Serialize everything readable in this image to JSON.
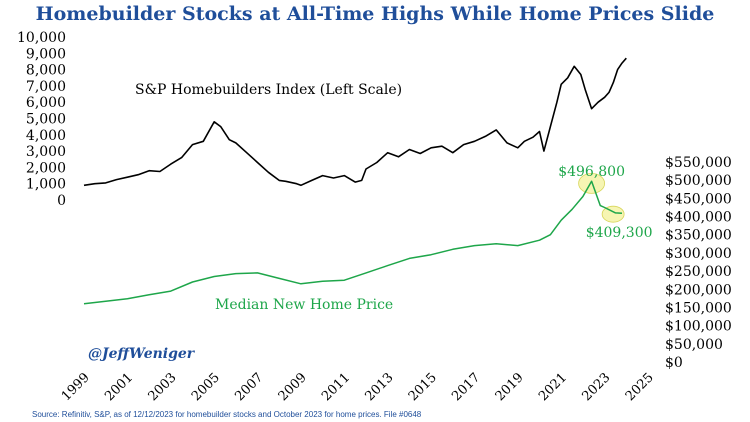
{
  "chart_data": {
    "type": "line",
    "title": "Homebuilder Stocks at All-Time Highs While Home Prices Slide",
    "x_ticks": [
      "1999",
      "2001",
      "2003",
      "2005",
      "2007",
      "2009",
      "2011",
      "2013",
      "2015",
      "2017",
      "2019",
      "2021",
      "2023",
      "2025"
    ],
    "xlim": [
      1999,
      2025
    ],
    "left_axis": {
      "ticks": [
        "10,000",
        "9,000",
        "8,000",
        "7,000",
        "6,000",
        "5,000",
        "4,000",
        "3,000",
        "2,000",
        "1,000",
        "0"
      ],
      "ylim": [
        0,
        10000
      ]
    },
    "right_axis": {
      "ticks": [
        "$550,000",
        "$500,000",
        "$450,000",
        "$400,000",
        "$350,000",
        "$300,000",
        "$250,000",
        "$200,000",
        "$150,000",
        "$100,000",
        "$50,000",
        "$0"
      ],
      "ylim": [
        0,
        550000
      ]
    },
    "series": [
      {
        "name": "S&P Homebuilders Index (Left Scale)",
        "axis": "left",
        "color": "#000000",
        "x": [
          1999.0,
          1999.5,
          2000.0,
          2000.5,
          2001.0,
          2001.5,
          2002.0,
          2002.5,
          2003.0,
          2003.5,
          2004.0,
          2004.5,
          2005.0,
          2005.3,
          2005.7,
          2006.0,
          2006.5,
          2007.0,
          2007.5,
          2008.0,
          2008.3,
          2008.8,
          2009.0,
          2009.5,
          2010.0,
          2010.5,
          2011.0,
          2011.5,
          2011.8,
          2012.0,
          2012.5,
          2013.0,
          2013.5,
          2014.0,
          2014.5,
          2015.0,
          2015.5,
          2016.0,
          2016.5,
          2017.0,
          2017.5,
          2018.0,
          2018.5,
          2019.0,
          2019.3,
          2019.7,
          2020.0,
          2020.2,
          2020.5,
          2020.8,
          2021.0,
          2021.3,
          2021.6,
          2021.9,
          2022.1,
          2022.4,
          2022.7,
          2023.0,
          2023.2,
          2023.4,
          2023.6,
          2023.8,
          2024.0
        ],
        "y": [
          900,
          1000,
          1050,
          1250,
          1400,
          1550,
          1800,
          1750,
          2200,
          2600,
          3400,
          3600,
          4800,
          4500,
          3700,
          3500,
          2900,
          2300,
          1700,
          1200,
          1150,
          1000,
          900,
          1200,
          1500,
          1350,
          1500,
          1100,
          1200,
          1900,
          2300,
          2900,
          2650,
          3100,
          2850,
          3200,
          3300,
          2900,
          3400,
          3600,
          3900,
          4300,
          3500,
          3200,
          3600,
          3850,
          4200,
          3000,
          4500,
          6000,
          7100,
          7500,
          8200,
          7700,
          6800,
          5600,
          6000,
          6300,
          6600,
          7200,
          8000,
          8400,
          8700
        ]
      },
      {
        "name": "Median New Home Price",
        "axis": "right",
        "color": "#1ea64a",
        "x": [
          1999.0,
          2000.0,
          2001.0,
          2002.0,
          2003.0,
          2004.0,
          2005.0,
          2006.0,
          2007.0,
          2008.0,
          2009.0,
          2010.0,
          2011.0,
          2012.0,
          2013.0,
          2014.0,
          2015.0,
          2016.0,
          2017.0,
          2018.0,
          2019.0,
          2020.0,
          2020.5,
          2021.0,
          2021.5,
          2022.0,
          2022.4,
          2022.8,
          2023.0,
          2023.5,
          2023.8
        ],
        "y": [
          160000,
          167000,
          174000,
          185000,
          195000,
          220000,
          235000,
          243000,
          245000,
          230000,
          215000,
          222000,
          225000,
          245000,
          265000,
          285000,
          295000,
          310000,
          320000,
          325000,
          320000,
          335000,
          350000,
          390000,
          420000,
          455000,
          496800,
          430000,
          425000,
          410000,
          409300
        ]
      }
    ],
    "annotations": [
      {
        "text": "$496,800",
        "x": 2022.4,
        "y": 496800,
        "axis": "right"
      },
      {
        "text": "$409,300",
        "x": 2023.3,
        "y": 409300,
        "axis": "right"
      }
    ],
    "source": "Source: Refinitiv, S&P, as of 12/12/2023 for homebuilder stocks and October 2023 for home prices. File #0648",
    "handle": "@JeffWeniger"
  }
}
